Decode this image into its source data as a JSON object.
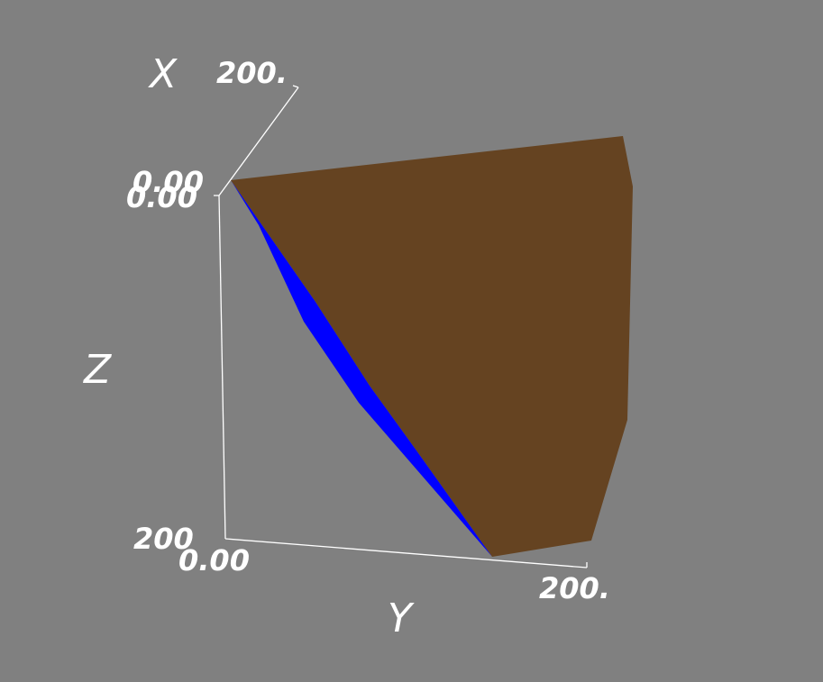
{
  "scene": {
    "background_color": "#808080",
    "axes": {
      "x": {
        "title": "X",
        "tick_start": "0.00",
        "tick_end": "200."
      },
      "y": {
        "title": "Y",
        "tick_start": "0.00",
        "tick_end": "200."
      },
      "z": {
        "title": "Z",
        "tick_start": "0.00",
        "tick_end": "200"
      }
    },
    "surfaces": [
      {
        "name": "brown-surface",
        "color": "#654321"
      },
      {
        "name": "blue-surface",
        "color": "#0000ff"
      }
    ]
  }
}
